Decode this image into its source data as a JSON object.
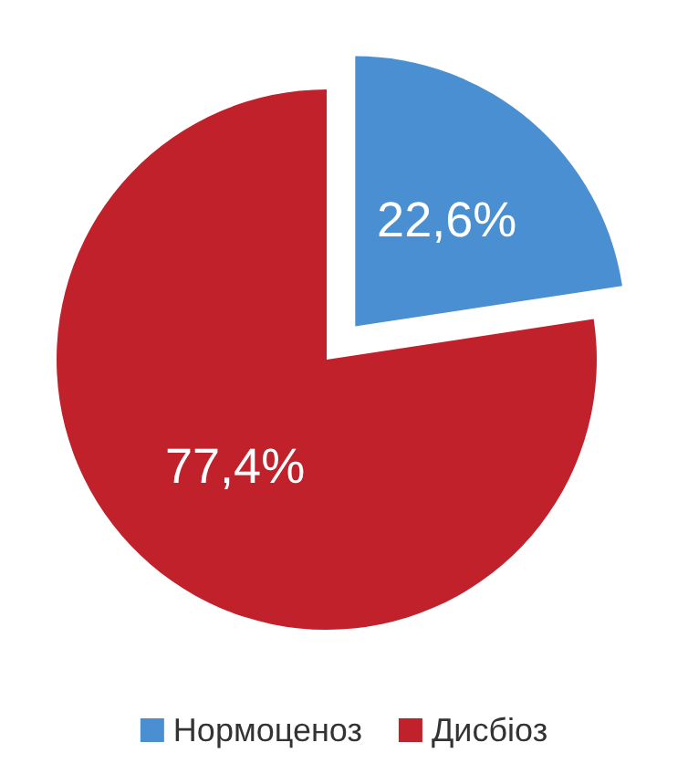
{
  "chart_data": {
    "type": "pie",
    "categories": [
      "Нормоценоз",
      "Дисбіоз"
    ],
    "values": [
      22.6,
      77.4
    ],
    "colors": [
      "#4a8fd2",
      "#c0212b"
    ],
    "value_labels": [
      "22,6%",
      "77,4%"
    ],
    "legend": "bottom"
  }
}
